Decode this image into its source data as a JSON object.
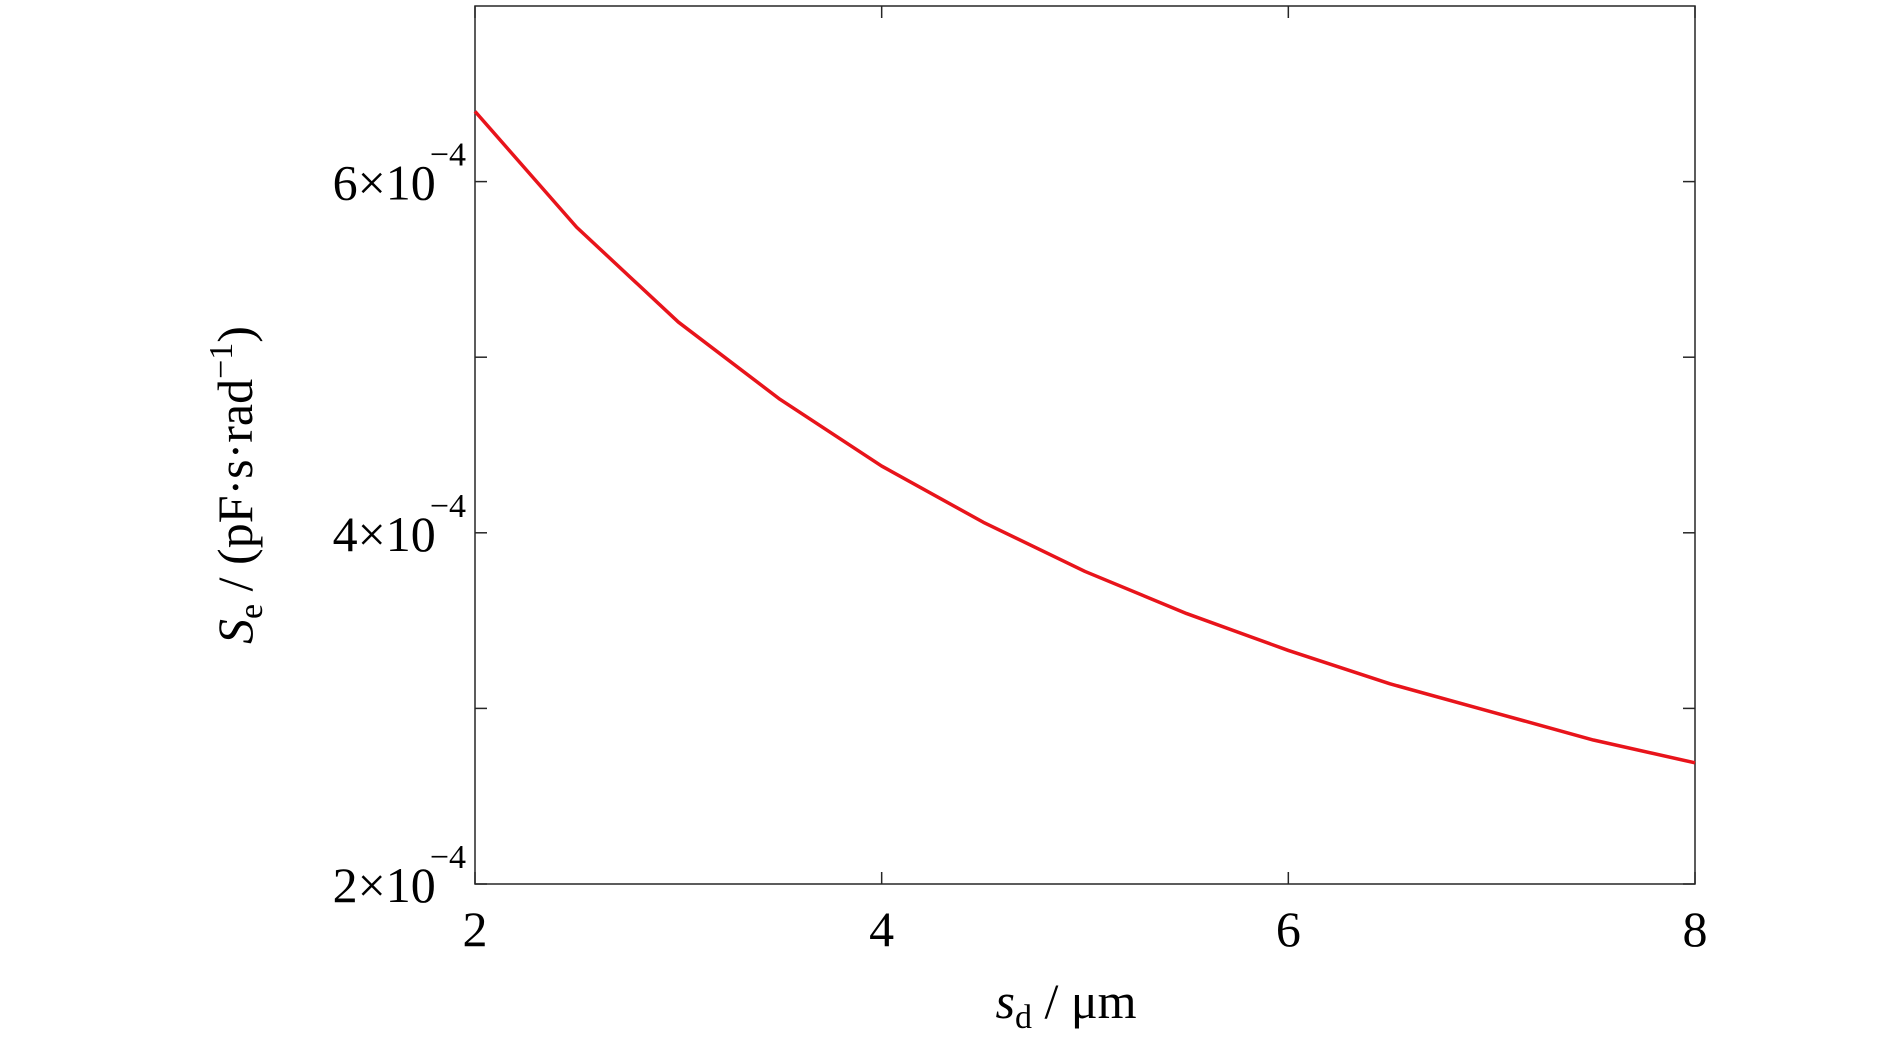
{
  "chart_data": {
    "type": "line",
    "xlabel": {
      "symbol": "s",
      "subscript": "d",
      "unit": " / μm"
    },
    "ylabel": {
      "symbol": "S",
      "subscript": "e",
      "unit": " / (pF·s·rad",
      "superscript": "−1",
      "close": ")"
    },
    "x": [
      2,
      2.5,
      3,
      3.5,
      4,
      4.5,
      5,
      5.5,
      6,
      6.5,
      7,
      7.5,
      8
    ],
    "series": [
      {
        "color": "#e8141b",
        "values": [
          0.00064,
          0.000574,
          0.00052,
          0.000476,
          0.000438,
          0.000406,
          0.000378,
          0.000354,
          0.000333,
          0.000314,
          0.000298,
          0.000282,
          0.000269
        ]
      }
    ],
    "xlim": [
      2,
      8
    ],
    "xticks": [
      2,
      4,
      6,
      8
    ],
    "ylim": [
      0.0002,
      0.0007
    ],
    "yticks": [
      {
        "value": 0.0002,
        "label": "2×10",
        "exponent": "−4"
      },
      {
        "value": 0.0004,
        "label": "4×10",
        "exponent": "−4"
      },
      {
        "value": 0.0006,
        "label": "6×10",
        "exponent": "−4"
      }
    ],
    "yminor_ticks": [
      0.0003,
      0.0005
    ],
    "grid": false
  }
}
